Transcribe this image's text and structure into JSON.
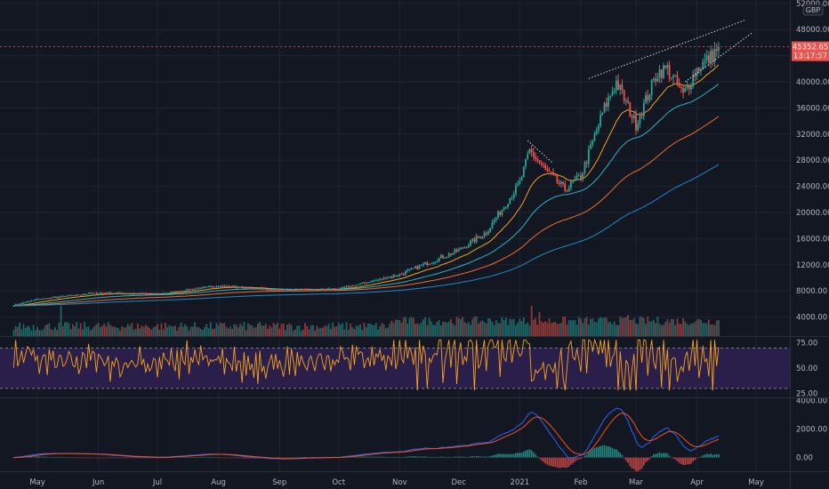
{
  "currency_badge": "GBP",
  "price_tag": {
    "price": "45352.65",
    "countdown": "13:17:57"
  },
  "x_axis_labels": [
    {
      "label": "May",
      "day": 0
    },
    {
      "label": "Jun",
      "day": 31
    },
    {
      "label": "Jul",
      "day": 61
    },
    {
      "label": "Aug",
      "day": 92
    },
    {
      "label": "Sep",
      "day": 123
    },
    {
      "label": "Oct",
      "day": 153
    },
    {
      "label": "Nov",
      "day": 184
    },
    {
      "label": "Dec",
      "day": 214
    },
    {
      "label": "2021",
      "day": 245
    },
    {
      "label": "Feb",
      "day": 276
    },
    {
      "label": "Mar",
      "day": 304
    },
    {
      "label": "Apr",
      "day": 335
    },
    {
      "label": "May",
      "day": 365
    }
  ],
  "colors": {
    "background": "#131722",
    "grid": "#1f2433",
    "axis_text": "#b2b5be",
    "up": "#26a69a",
    "down": "#ef5350",
    "ma_fast": "#f7a21b",
    "ma_mid": "#2db3c6",
    "ma_slow": "#f26b2b",
    "ma_long": "#1e88c8",
    "rsi_line": "#f7a21b",
    "rsi_band": "#2a1f4a",
    "macd": "#2962ff",
    "macd_signal": "#f4511e",
    "price_tag": "#ef5350"
  },
  "chart_data": [
    {
      "type": "candlestick",
      "pane": "price",
      "title": "",
      "y_ticks": [
        4000,
        8000,
        12000,
        16000,
        20000,
        24000,
        28000,
        32000,
        36000,
        40000,
        44000,
        48000,
        52000
      ],
      "ylim": [
        2000,
        52500
      ],
      "x_start_label": "mid-April 2020",
      "x_days": 365,
      "anchors": [
        {
          "day": -12,
          "price": 5800
        },
        {
          "day": 0,
          "price": 6700
        },
        {
          "day": 20,
          "price": 7400
        },
        {
          "day": 31,
          "price": 7700
        },
        {
          "day": 61,
          "price": 7500
        },
        {
          "day": 92,
          "price": 8800
        },
        {
          "day": 123,
          "price": 8100
        },
        {
          "day": 153,
          "price": 8300
        },
        {
          "day": 184,
          "price": 10500
        },
        {
          "day": 200,
          "price": 12500
        },
        {
          "day": 214,
          "price": 14200
        },
        {
          "day": 228,
          "price": 17000
        },
        {
          "day": 245,
          "price": 24500
        },
        {
          "day": 250,
          "price": 29500
        },
        {
          "day": 258,
          "price": 26500
        },
        {
          "day": 268,
          "price": 23500
        },
        {
          "day": 276,
          "price": 25500
        },
        {
          "day": 288,
          "price": 36000
        },
        {
          "day": 294,
          "price": 40000
        },
        {
          "day": 304,
          "price": 33500
        },
        {
          "day": 315,
          "price": 41500
        },
        {
          "day": 320,
          "price": 42000
        },
        {
          "day": 328,
          "price": 38000
        },
        {
          "day": 335,
          "price": 42000
        },
        {
          "day": 342,
          "price": 43800
        },
        {
          "day": 346,
          "price": 45352.65
        }
      ],
      "moving_averages": [
        {
          "period": 20,
          "color": "#f7a21b"
        },
        {
          "period": 50,
          "color": "#2db3c6"
        },
        {
          "period": 100,
          "color": "#f26b2b"
        },
        {
          "period": 200,
          "color": "#1e88c8"
        }
      ],
      "trendlines": [
        {
          "from": {
            "day": 280,
            "price": 40500
          },
          "to": {
            "day": 360,
            "price": 49500
          }
        },
        {
          "from": {
            "day": 329,
            "price": 40000
          },
          "to": {
            "day": 363,
            "price": 47500
          }
        },
        {
          "from": {
            "day": 249,
            "price": 31000
          },
          "to": {
            "day": 262,
            "price": 27500
          }
        }
      ],
      "last_price": 45352.65
    },
    {
      "type": "bar",
      "pane": "volume",
      "title": "",
      "spikes": [
        {
          "day": 12,
          "rel": 1.0
        },
        {
          "day": 251,
          "rel": 1.0
        },
        {
          "day": 255,
          "rel": 0.8
        },
        {
          "day": 300,
          "rel": 0.7
        }
      ]
    },
    {
      "type": "line",
      "pane": "rsi",
      "title": "",
      "y_ticks": [
        25,
        50,
        75
      ],
      "ylim": [
        22,
        80
      ],
      "band": [
        30,
        70
      ]
    },
    {
      "type": "line",
      "pane": "macd",
      "title": "",
      "y_ticks": [
        0,
        2000,
        4000
      ],
      "ylim": [
        -900,
        4100
      ]
    }
  ]
}
